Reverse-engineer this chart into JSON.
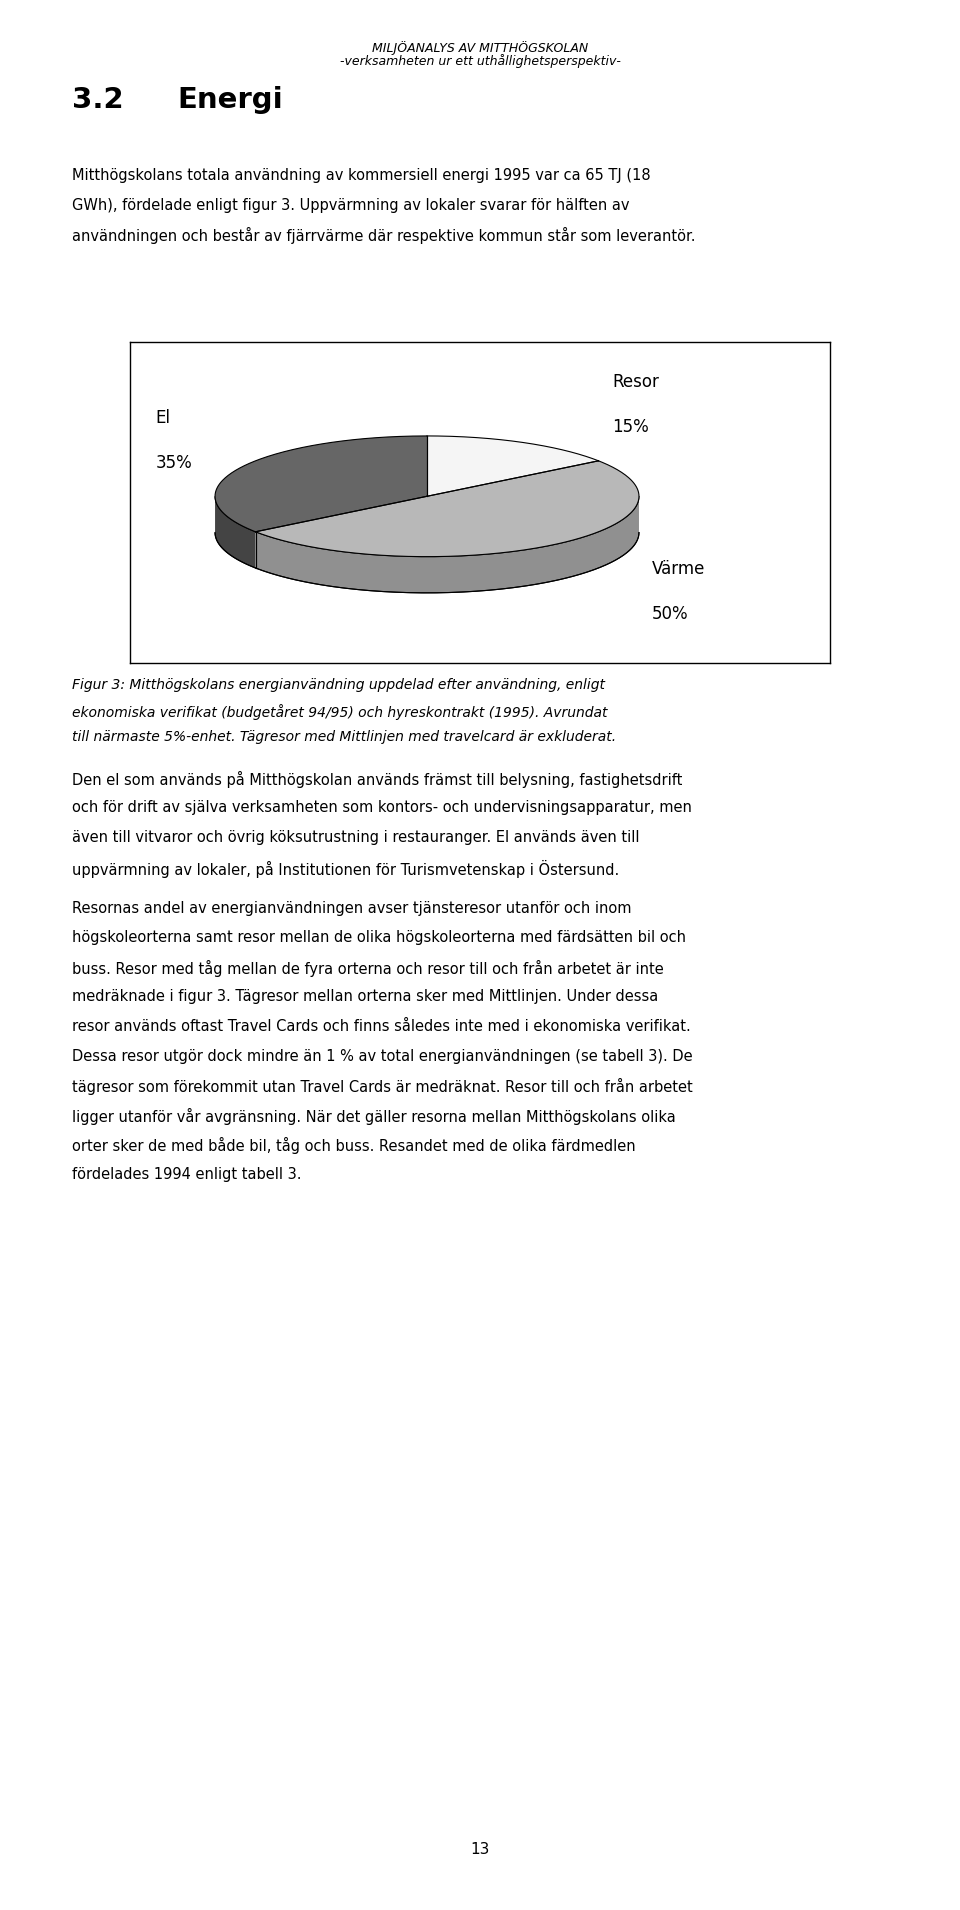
{
  "title_line1": "MILJÖANALYS AV MITTHÖGSKOLAN",
  "title_line2": "-verksamheten ur ett uthållighetsperspektiv-",
  "section_number": "3.2",
  "section_title": "Energi",
  "body_lines_1": [
    "Mitthögskolans totala användning av kommersiell energi 1995 var ca 65 TJ (18",
    "GWh), fördelade enligt figur 3. Uppvärmning av lokaler svarar för hälften av",
    "användningen och består av fjärrvärme där respektive kommun står som leverantör."
  ],
  "pie_slices": [
    {
      "label": "El",
      "pct": "35%",
      "value": 35,
      "color_top": "#666666",
      "color_side": "#444444"
    },
    {
      "label": "Resor",
      "pct": "15%",
      "value": 15,
      "color_top": "#f5f5f5",
      "color_side": "#cccccc"
    },
    {
      "label": "Värme",
      "pct": "50%",
      "value": 50,
      "color_top": "#b8b8b8",
      "color_side": "#909090"
    }
  ],
  "fig_caption_lines": [
    "Figur 3: Mitthögskolans energianvändning uppdelad efter användning, enligt",
    "ekonomiska verifikat (budgetåret 94/95) och hyreskontrakt (1995). Avrundat",
    "till närmaste 5%-enhet. Tägresor med Mittlinjen med travelcard är exkluderat."
  ],
  "body_lines_2": [
    "Den el som används på Mitthögskolan används främst till belysning, fastighetsdrift",
    "och för drift av själva verksamheten som kontors- och undervisningsapparatur, men",
    "även till vitvaror och övrig köksutrustning i restauranger. El används även till",
    "uppvärmning av lokaler, på Institutionen för Turismvetenskap i Östersund."
  ],
  "body_lines_3": [
    "Resornas andel av energianvändningen avser tjänsteresor utanför och inom",
    "högskoleorterna samt resor mellan de olika högskoleorterna med färdsätten bil och",
    "buss. Resor med tåg mellan de fyra orterna och resor till och från arbetet är inte",
    "medräknade i figur 3. Tägresor mellan orterna sker med Mittlinjen. Under dessa",
    "resor används oftast Travel Cards och finns således inte med i ekonomiska verifikat.",
    "Dessa resor utgör dock mindre än 1 % av total energianvändningen (se tabell 3). De",
    "tägresor som förekommit utan Travel Cards är medräknat. Resor till och från arbetet",
    "ligger utanför vår avgränsning. När det gäller resorna mellan Mitthögskolans olika",
    "orter sker de med både bil, tåg och buss. Resandet med de olika färdmedlen",
    "fördelades 1994 enligt tabell 3."
  ],
  "page_number": "13",
  "lh": 0.0155
}
